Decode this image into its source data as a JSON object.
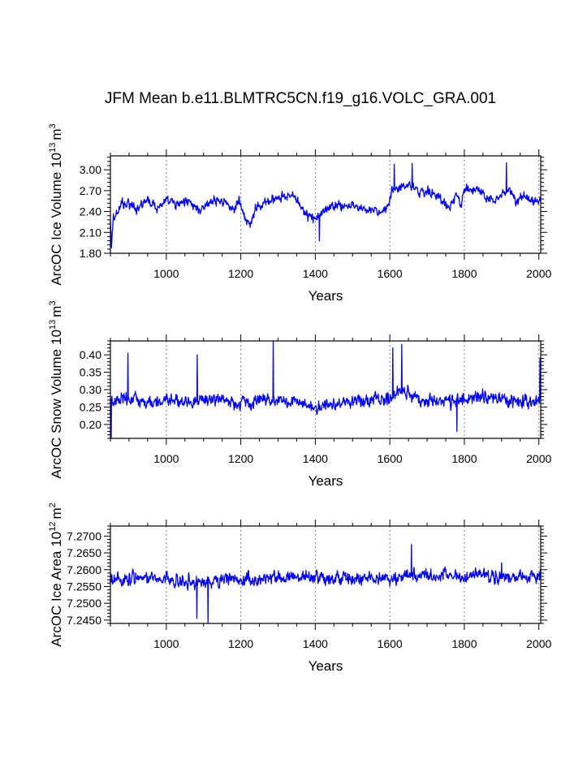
{
  "title": "JFM Mean b.e11.BLMTRC5CN.f19_g16.VOLC_GRA.001",
  "colors": {
    "series": "#0000ff",
    "axis": "#000000",
    "grid": "#7f7f7f"
  },
  "chart_data": [
    {
      "type": "line",
      "ylabel": "ArcOC Ice Volume",
      "yunits_mantissa": "10",
      "yunits_exponent": "13",
      "yunits_unit": "m",
      "yunits_unit_exponent": "3",
      "xlabel": "Years",
      "xlim": [
        850,
        2005
      ],
      "ylim": [
        1.8,
        3.2
      ],
      "xticks": [
        1000,
        1200,
        1400,
        1600,
        1800,
        2000
      ],
      "yticks": [
        1.8,
        2.1,
        2.4,
        2.7,
        3.0
      ],
      "ytick_labels": [
        "1.80",
        "2.10",
        "2.40",
        "2.70",
        "3.00"
      ],
      "grid_x": true,
      "series": [
        {
          "name": "ArcOC Ice Volume",
          "anchors_x": [
            850,
            853,
            858,
            870,
            880,
            900,
            920,
            950,
            975,
            1000,
            1030,
            1060,
            1090,
            1120,
            1150,
            1180,
            1195,
            1210,
            1225,
            1235,
            1250,
            1270,
            1300,
            1320,
            1345,
            1360,
            1380,
            1400,
            1420,
            1440,
            1460,
            1480,
            1500,
            1520,
            1540,
            1560,
            1580,
            1598,
            1605,
            1620,
            1650,
            1680,
            1700,
            1720,
            1740,
            1750,
            1760,
            1780,
            1790,
            1800,
            1820,
            1840,
            1860,
            1880,
            1900,
            1920,
            1940,
            1960,
            1980,
            2005
          ],
          "anchors_y": [
            2.25,
            1.85,
            2.3,
            2.4,
            2.5,
            2.5,
            2.45,
            2.55,
            2.45,
            2.55,
            2.5,
            2.55,
            2.4,
            2.55,
            2.55,
            2.45,
            2.55,
            2.3,
            2.2,
            2.4,
            2.5,
            2.55,
            2.6,
            2.65,
            2.6,
            2.45,
            2.35,
            2.3,
            2.4,
            2.45,
            2.5,
            2.45,
            2.5,
            2.45,
            2.4,
            2.45,
            2.4,
            2.45,
            2.75,
            2.7,
            2.8,
            2.65,
            2.7,
            2.65,
            2.55,
            2.5,
            2.45,
            2.65,
            2.5,
            2.7,
            2.7,
            2.7,
            2.6,
            2.55,
            2.65,
            2.7,
            2.55,
            2.6,
            2.55,
            2.55
          ],
          "noise_amplitude": 0.34,
          "extremes": [
            [
              853,
              1.88
            ],
            [
              1411,
              1.98
            ],
            [
              1612,
              3.08
            ],
            [
              1660,
              3.09
            ],
            [
              1913,
              3.1
            ]
          ]
        }
      ]
    },
    {
      "type": "line",
      "ylabel": "ArcOC Snow Volume",
      "yunits_mantissa": "10",
      "yunits_exponent": "13",
      "yunits_unit": "m",
      "yunits_unit_exponent": "3",
      "xlabel": "Years",
      "xlim": [
        850,
        2005
      ],
      "ylim": [
        0.16,
        0.44
      ],
      "xticks": [
        1000,
        1200,
        1400,
        1600,
        1800,
        2000
      ],
      "yticks": [
        0.2,
        0.25,
        0.3,
        0.35,
        0.4
      ],
      "ytick_labels": [
        "0.20",
        "0.25",
        "0.30",
        "0.35",
        "0.40"
      ],
      "grid_x": true,
      "series": [
        {
          "name": "ArcOC Snow Volume",
          "anchors_x": [
            850,
            900,
            950,
            1000,
            1050,
            1100,
            1150,
            1200,
            1250,
            1300,
            1350,
            1400,
            1450,
            1500,
            1550,
            1600,
            1620,
            1650,
            1700,
            1750,
            1800,
            1850,
            1900,
            1950,
            2005
          ],
          "anchors_y": [
            0.27,
            0.27,
            0.26,
            0.27,
            0.26,
            0.27,
            0.27,
            0.26,
            0.27,
            0.27,
            0.26,
            0.25,
            0.26,
            0.27,
            0.27,
            0.27,
            0.3,
            0.29,
            0.27,
            0.27,
            0.27,
            0.28,
            0.27,
            0.26,
            0.27
          ],
          "noise_amplitude": 0.09,
          "extremes": [
            [
              852,
              0.16
            ],
            [
              897,
              0.405
            ],
            [
              1083,
              0.4
            ],
            [
              1287,
              0.44
            ],
            [
              1608,
              0.42
            ],
            [
              1632,
              0.43
            ],
            [
              1780,
              0.18
            ],
            [
              2003,
              0.39
            ]
          ]
        }
      ]
    },
    {
      "type": "line",
      "ylabel": "ArcOC Ice Area",
      "yunits_mantissa": "10",
      "yunits_exponent": "12",
      "yunits_unit": "m",
      "yunits_unit_exponent": "2",
      "xlabel": "Years",
      "xlim": [
        850,
        2005
      ],
      "ylim": [
        7.244,
        7.273
      ],
      "xticks": [
        1000,
        1200,
        1400,
        1600,
        1800,
        2000
      ],
      "yticks": [
        7.245,
        7.25,
        7.255,
        7.26,
        7.265,
        7.27
      ],
      "ytick_labels": [
        "7.2450",
        "7.2500",
        "7.2550",
        "7.2600",
        "7.2650",
        "7.2700"
      ],
      "grid_x": true,
      "series": [
        {
          "name": "ArcOC Ice Area",
          "anchors_x": [
            850,
            900,
            950,
            1000,
            1050,
            1100,
            1150,
            1200,
            1250,
            1300,
            1350,
            1400,
            1450,
            1500,
            1550,
            1600,
            1650,
            1700,
            1750,
            1800,
            1850,
            1900,
            1950,
            2005
          ],
          "anchors_y": [
            7.2565,
            7.257,
            7.2575,
            7.257,
            7.2565,
            7.2565,
            7.257,
            7.257,
            7.2575,
            7.258,
            7.258,
            7.2575,
            7.258,
            7.2575,
            7.2575,
            7.2575,
            7.258,
            7.258,
            7.2585,
            7.258,
            7.2585,
            7.258,
            7.258,
            7.258
          ],
          "noise_amplitude": 0.0095,
          "extremes": [
            [
              1082,
              7.2455
            ],
            [
              1112,
              7.2441
            ],
            [
              1658,
              7.2675
            ],
            [
              1900,
              7.262
            ]
          ]
        }
      ]
    }
  ]
}
